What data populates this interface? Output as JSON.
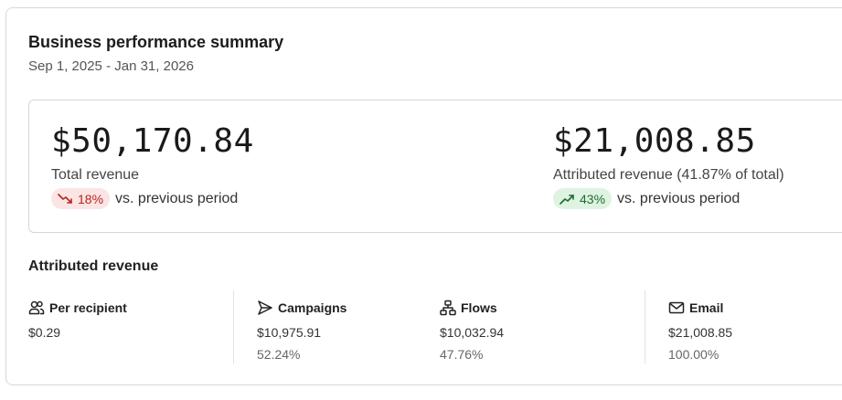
{
  "header": {
    "title": "Business performance summary",
    "date_range": "Sep 1, 2025 - Jan 31, 2026"
  },
  "metrics": {
    "total": {
      "value": "$50,170.84",
      "label": "Total revenue",
      "delta": "18%",
      "delta_direction": "down",
      "comparison": "vs. previous period"
    },
    "attributed": {
      "value": "$21,008.85",
      "label": "Attributed revenue (41.87% of total)",
      "delta": "43%",
      "delta_direction": "up",
      "comparison": "vs. previous period"
    }
  },
  "attributed_section": {
    "title": "Attributed revenue",
    "columns": [
      {
        "icon": "users-icon",
        "label": "Per recipient",
        "value": "$0.29",
        "percent": ""
      },
      {
        "icon": "send-icon",
        "label": "Campaigns",
        "value": "$10,975.91",
        "percent": "52.24%"
      },
      {
        "icon": "flow-icon",
        "label": "Flows",
        "value": "$10,032.94",
        "percent": "47.76%"
      },
      {
        "icon": "mail-icon",
        "label": "Email",
        "value": "$21,008.85",
        "percent": "100.00%"
      }
    ]
  },
  "colors": {
    "down_bg": "#fbe4e4",
    "down_fg": "#b3261e",
    "up_bg": "#dff3e2",
    "up_fg": "#1e6b34"
  }
}
